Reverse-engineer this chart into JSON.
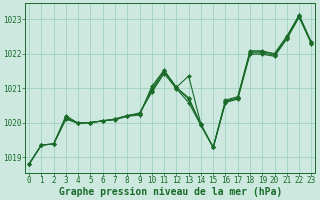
{
  "xlabel": "Graphe pression niveau de la mer (hPa)",
  "ylim": [
    1018.55,
    1023.45
  ],
  "xlim": [
    -0.3,
    23.3
  ],
  "yticks": [
    1019,
    1020,
    1021,
    1022,
    1023
  ],
  "xticks": [
    0,
    1,
    2,
    3,
    4,
    5,
    6,
    7,
    8,
    9,
    10,
    11,
    12,
    13,
    14,
    15,
    16,
    17,
    18,
    19,
    20,
    21,
    22,
    23
  ],
  "xtick_labels": [
    "0",
    "1",
    "2",
    "3",
    "4",
    "5",
    "6",
    "7",
    "8",
    "9",
    "10",
    "11",
    "12",
    "13",
    "14",
    "15",
    "16",
    "17",
    "18",
    "19",
    "20",
    "21",
    "22",
    "23"
  ],
  "background_color": "#cce8df",
  "grid_color": "#99ccbb",
  "line_color": "#1a6b2a",
  "marker_color": "#1a6b2a",
  "series": [
    [
      1018.8,
      1019.35,
      1019.38,
      1020.2,
      1019.98,
      1020.0,
      1020.05,
      1020.08,
      1020.18,
      1020.22,
      1021.05,
      1021.52,
      1021.02,
      1021.35,
      1019.95,
      1019.28,
      1020.62,
      1020.72,
      1022.08,
      1022.08,
      1021.98,
      1022.48,
      1023.12,
      1022.32
    ],
    [
      1018.8,
      1019.35,
      1019.38,
      1020.15,
      1019.98,
      1020.0,
      1020.05,
      1020.1,
      1020.2,
      1020.28,
      1020.88,
      1021.42,
      1020.98,
      1020.58,
      1019.92,
      1019.28,
      1020.58,
      1020.68,
      1021.98,
      1021.98,
      1021.92,
      1022.42,
      1023.05,
      1022.28
    ],
    [
      1018.8,
      1019.35,
      1019.38,
      1020.1,
      1019.98,
      1020.0,
      1020.05,
      1020.1,
      1020.2,
      1020.25,
      1020.92,
      1021.48,
      1021.0,
      1020.68,
      1019.92,
      1019.28,
      1020.6,
      1020.7,
      1022.02,
      1022.02,
      1021.95,
      1022.45,
      1023.08,
      1022.3
    ],
    [
      1018.8,
      1019.35,
      1019.38,
      1020.12,
      1019.98,
      1020.0,
      1020.05,
      1020.1,
      1020.2,
      1020.25,
      1020.98,
      1021.5,
      1021.02,
      1020.72,
      1019.95,
      1019.28,
      1020.65,
      1020.75,
      1022.05,
      1022.05,
      1022.0,
      1022.5,
      1023.1,
      1022.32
    ]
  ],
  "marker": "D",
  "markersize": 2.0,
  "linewidth": 0.8,
  "tick_fontsize": 5.5,
  "label_fontsize": 7.0,
  "label_fontweight": "bold"
}
